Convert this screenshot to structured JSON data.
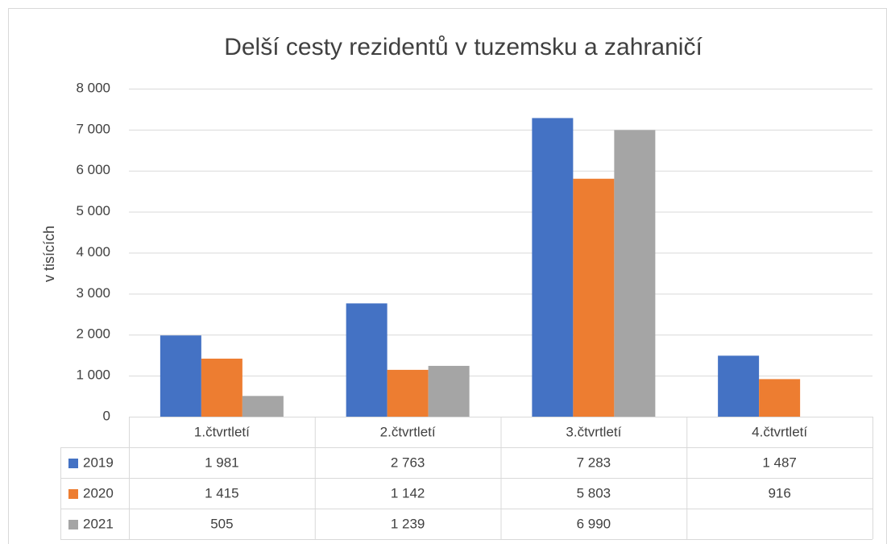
{
  "chart_data": {
    "type": "bar",
    "title": "Delší cesty rezidentů v tuzemsku a zahraničí",
    "y_label": "v tisících",
    "categories": [
      "1.čtvrtletí",
      "2.čtvrtletí",
      "3.čtvrtletí",
      "4.čtvrtletí"
    ],
    "series": [
      {
        "name": "2019",
        "color": "#4472c4",
        "values": [
          1981,
          2763,
          7283,
          1487
        ],
        "value_labels": [
          "1 981",
          "2 763",
          "7 283",
          "1 487"
        ]
      },
      {
        "name": "2020",
        "color": "#ed7d31",
        "values": [
          1415,
          1142,
          5803,
          916
        ],
        "value_labels": [
          "1 415",
          "1 142",
          "5 803",
          "916"
        ]
      },
      {
        "name": "2021",
        "color": "#a5a5a5",
        "values": [
          505,
          1239,
          6990,
          null
        ],
        "value_labels": [
          "505",
          "1 239",
          "6 990",
          null
        ]
      }
    ],
    "ylim": [
      0,
      8000
    ],
    "yticks": [
      0,
      {
        "value": 1000,
        "label": "1 000"
      },
      {
        "value": 2000,
        "label": "2 000"
      },
      {
        "value": 3000,
        "label": "3 000"
      },
      {
        "value": 4000,
        "label": "4 000"
      },
      {
        "value": 5000,
        "label": "5 000"
      },
      {
        "value": 6000,
        "label": "6 000"
      },
      {
        "value": 7000,
        "label": "7 000"
      },
      {
        "value": 8000,
        "label": "8 000"
      }
    ],
    "grid": true
  }
}
